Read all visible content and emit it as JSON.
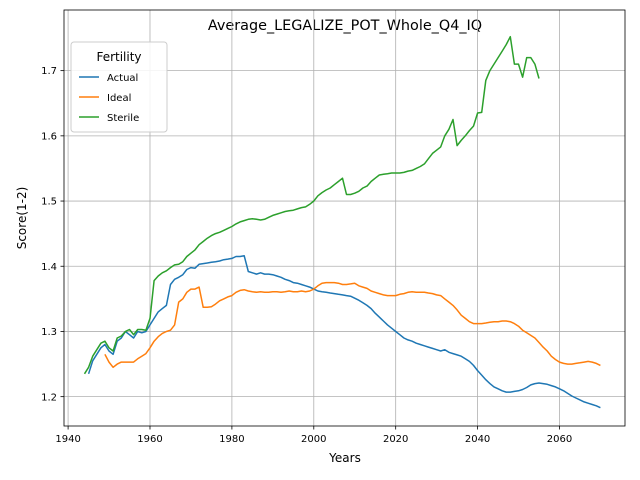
{
  "chart_data": {
    "type": "line",
    "title": "Average_LEGALIZE_POT_Whole_Q4_IQ",
    "xlabel": "Years",
    "ylabel": "Score(1-2)",
    "xlim": [
      1939.0,
      2076.0
    ],
    "ylim": [
      1.155,
      1.793
    ],
    "xticks": [
      1940,
      1960,
      1980,
      2000,
      2020,
      2040,
      2060
    ],
    "yticks": [
      1.2,
      1.3,
      1.4,
      1.5,
      1.6,
      1.7
    ],
    "xtick_labels": [
      "1940",
      "1960",
      "1980",
      "2000",
      "2020",
      "2040",
      "2060"
    ],
    "ytick_labels": [
      "1.2",
      "1.3",
      "1.4",
      "1.5",
      "1.6",
      "1.7"
    ],
    "grid": true,
    "legend": {
      "title": "Fertility",
      "placement": "top-left"
    },
    "series": [
      {
        "name": "Actual",
        "color": "#1f77b4",
        "x": [
          1945,
          1946,
          1947,
          1948,
          1949,
          1950,
          1951,
          1952,
          1953,
          1954,
          1955,
          1956,
          1957,
          1958,
          1959,
          1960,
          1961,
          1962,
          1963,
          1964,
          1965,
          1966,
          1967,
          1968,
          1969,
          1970,
          1971,
          1972,
          1973,
          1974,
          1975,
          1976,
          1977,
          1978,
          1979,
          1980,
          1981,
          1982,
          1983,
          1984,
          1985,
          1986,
          1987,
          1988,
          1989,
          1990,
          1991,
          1992,
          1993,
          1994,
          1995,
          1996,
          1997,
          1998,
          1999,
          2000,
          2001,
          2002,
          2003,
          2004,
          2005,
          2006,
          2007,
          2008,
          2009,
          2010,
          2011,
          2012,
          2013,
          2014,
          2015,
          2016,
          2017,
          2018,
          2019,
          2020,
          2021,
          2022,
          2023,
          2024,
          2025,
          2026,
          2027,
          2028,
          2029,
          2030,
          2031,
          2032,
          2033,
          2034,
          2035,
          2036,
          2037,
          2038,
          2039,
          2040,
          2041,
          2042,
          2043,
          2044,
          2045,
          2046,
          2047,
          2048,
          2049,
          2050,
          2051,
          2052,
          2053,
          2054,
          2055,
          2056,
          2057,
          2058,
          2059,
          2060,
          2061,
          2062,
          2063,
          2064,
          2065,
          2066,
          2067,
          2068,
          2069,
          2070
        ],
        "y": [
          1.235,
          1.255,
          1.265,
          1.275,
          1.28,
          1.27,
          1.265,
          1.285,
          1.29,
          1.3,
          1.295,
          1.29,
          1.3,
          1.298,
          1.3,
          1.31,
          1.32,
          1.33,
          1.335,
          1.34,
          1.372,
          1.38,
          1.383,
          1.387,
          1.395,
          1.398,
          1.397,
          1.403,
          1.404,
          1.405,
          1.406,
          1.407,
          1.408,
          1.41,
          1.411,
          1.412,
          1.415,
          1.415,
          1.416,
          1.392,
          1.39,
          1.388,
          1.39,
          1.388,
          1.388,
          1.387,
          1.385,
          1.383,
          1.38,
          1.378,
          1.375,
          1.374,
          1.372,
          1.37,
          1.368,
          1.365,
          1.362,
          1.361,
          1.36,
          1.359,
          1.358,
          1.357,
          1.356,
          1.355,
          1.354,
          1.351,
          1.348,
          1.344,
          1.34,
          1.335,
          1.328,
          1.322,
          1.316,
          1.31,
          1.305,
          1.3,
          1.295,
          1.29,
          1.287,
          1.285,
          1.282,
          1.28,
          1.278,
          1.276,
          1.274,
          1.272,
          1.27,
          1.272,
          1.268,
          1.266,
          1.264,
          1.262,
          1.258,
          1.254,
          1.248,
          1.24,
          1.233,
          1.226,
          1.22,
          1.215,
          1.212,
          1.209,
          1.207,
          1.207,
          1.208,
          1.209,
          1.211,
          1.214,
          1.218,
          1.22,
          1.221,
          1.22,
          1.219,
          1.217,
          1.215,
          1.212,
          1.209,
          1.205,
          1.201,
          1.198,
          1.195,
          1.192,
          1.19,
          1.188,
          1.186,
          1.183
        ]
      },
      {
        "name": "Ideal",
        "color": "#ff7f0e",
        "x": [
          1949,
          1950,
          1951,
          1952,
          1953,
          1954,
          1955,
          1956,
          1957,
          1958,
          1959,
          1960,
          1961,
          1962,
          1963,
          1964,
          1965,
          1966,
          1967,
          1968,
          1969,
          1970,
          1971,
          1972,
          1973,
          1974,
          1975,
          1976,
          1977,
          1978,
          1979,
          1980,
          1981,
          1982,
          1983,
          1984,
          1985,
          1986,
          1987,
          1988,
          1989,
          1990,
          1991,
          1992,
          1993,
          1994,
          1995,
          1996,
          1997,
          1998,
          1999,
          2000,
          2001,
          2002,
          2003,
          2004,
          2005,
          2006,
          2007,
          2008,
          2009,
          2010,
          2011,
          2012,
          2013,
          2014,
          2015,
          2016,
          2017,
          2018,
          2019,
          2020,
          2021,
          2022,
          2023,
          2024,
          2025,
          2026,
          2027,
          2028,
          2029,
          2030,
          2031,
          2032,
          2033,
          2034,
          2035,
          2036,
          2037,
          2038,
          2039,
          2040,
          2041,
          2042,
          2043,
          2044,
          2045,
          2046,
          2047,
          2048,
          2049,
          2050,
          2051,
          2052,
          2053,
          2054,
          2055,
          2056,
          2057,
          2058,
          2059,
          2060,
          2061,
          2062,
          2063,
          2064,
          2065,
          2066,
          2067,
          2068,
          2069,
          2070
        ],
        "y": [
          1.265,
          1.253,
          1.245,
          1.25,
          1.253,
          1.253,
          1.253,
          1.253,
          1.258,
          1.262,
          1.266,
          1.275,
          1.285,
          1.292,
          1.297,
          1.3,
          1.302,
          1.31,
          1.345,
          1.35,
          1.36,
          1.365,
          1.365,
          1.368,
          1.337,
          1.337,
          1.338,
          1.342,
          1.347,
          1.35,
          1.353,
          1.355,
          1.36,
          1.363,
          1.364,
          1.362,
          1.361,
          1.36,
          1.361,
          1.36,
          1.36,
          1.361,
          1.361,
          1.36,
          1.361,
          1.362,
          1.361,
          1.361,
          1.362,
          1.361,
          1.362,
          1.365,
          1.37,
          1.374,
          1.375,
          1.375,
          1.375,
          1.374,
          1.372,
          1.372,
          1.373,
          1.374,
          1.37,
          1.368,
          1.366,
          1.362,
          1.36,
          1.358,
          1.356,
          1.355,
          1.355,
          1.355,
          1.357,
          1.358,
          1.36,
          1.361,
          1.36,
          1.36,
          1.36,
          1.359,
          1.358,
          1.356,
          1.355,
          1.35,
          1.345,
          1.34,
          1.333,
          1.325,
          1.32,
          1.315,
          1.312,
          1.312,
          1.312,
          1.313,
          1.314,
          1.315,
          1.315,
          1.316,
          1.316,
          1.315,
          1.312,
          1.308,
          1.302,
          1.298,
          1.294,
          1.29,
          1.283,
          1.276,
          1.27,
          1.262,
          1.257,
          1.253,
          1.251,
          1.25,
          1.25,
          1.251,
          1.252,
          1.253,
          1.254,
          1.253,
          1.251,
          1.248
        ]
      },
      {
        "name": "Sterile",
        "color": "#2ca02c",
        "x": [
          1944,
          1945,
          1946,
          1947,
          1948,
          1949,
          1950,
          1951,
          1952,
          1953,
          1954,
          1955,
          1956,
          1957,
          1958,
          1959,
          1960,
          1961,
          1962,
          1963,
          1964,
          1965,
          1966,
          1967,
          1968,
          1969,
          1970,
          1971,
          1972,
          1973,
          1974,
          1975,
          1976,
          1977,
          1978,
          1979,
          1980,
          1981,
          1982,
          1983,
          1984,
          1985,
          1986,
          1987,
          1988,
          1989,
          1990,
          1991,
          1992,
          1993,
          1994,
          1995,
          1996,
          1997,
          1998,
          1999,
          2000,
          2001,
          2002,
          2003,
          2004,
          2005,
          2006,
          2007,
          2008,
          2009,
          2010,
          2011,
          2012,
          2013,
          2014,
          2015,
          2016,
          2017,
          2018,
          2019,
          2020,
          2021,
          2022,
          2023,
          2024,
          2025,
          2026,
          2027,
          2028,
          2029,
          2030,
          2031,
          2032,
          2033,
          2034,
          2035,
          2036,
          2037,
          2038,
          2039,
          2040,
          2041,
          2042,
          2043,
          2044,
          2045,
          2046,
          2047,
          2048,
          2049,
          2050,
          2051,
          2052,
          2053,
          2054,
          2055
        ],
        "y": [
          1.235,
          1.245,
          1.262,
          1.272,
          1.282,
          1.285,
          1.275,
          1.27,
          1.29,
          1.293,
          1.3,
          1.303,
          1.295,
          1.303,
          1.303,
          1.302,
          1.32,
          1.378,
          1.385,
          1.39,
          1.393,
          1.398,
          1.402,
          1.403,
          1.407,
          1.415,
          1.42,
          1.425,
          1.433,
          1.438,
          1.443,
          1.447,
          1.45,
          1.452,
          1.455,
          1.458,
          1.461,
          1.465,
          1.468,
          1.47,
          1.472,
          1.473,
          1.472,
          1.471,
          1.472,
          1.475,
          1.478,
          1.48,
          1.482,
          1.484,
          1.485,
          1.486,
          1.488,
          1.49,
          1.491,
          1.495,
          1.5,
          1.508,
          1.513,
          1.517,
          1.52,
          1.525,
          1.53,
          1.535,
          1.51,
          1.51,
          1.512,
          1.515,
          1.52,
          1.523,
          1.53,
          1.535,
          1.54,
          1.541,
          1.542,
          1.543,
          1.543,
          1.543,
          1.544,
          1.546,
          1.547,
          1.55,
          1.553,
          1.557,
          1.565,
          1.573,
          1.578,
          1.583,
          1.6,
          1.61,
          1.625,
          1.585,
          1.593,
          1.6,
          1.608,
          1.615,
          1.635,
          1.636,
          1.685,
          1.7,
          1.71,
          1.72,
          1.73,
          1.74,
          1.752,
          1.71,
          1.71,
          1.69,
          1.72,
          1.72,
          1.71,
          1.688
        ]
      }
    ]
  }
}
